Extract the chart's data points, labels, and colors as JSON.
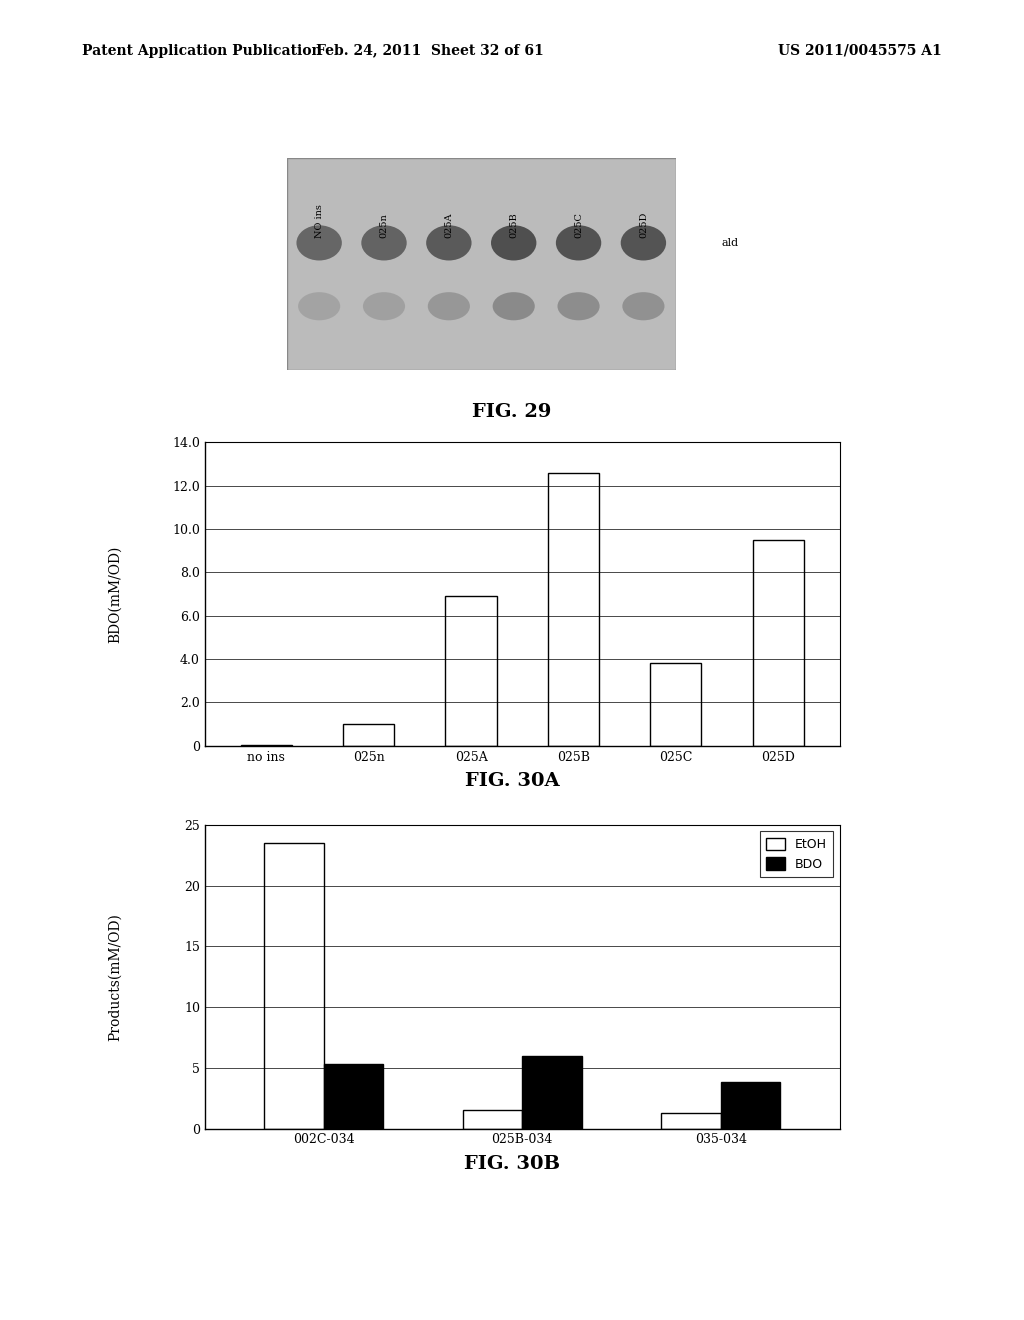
{
  "header_left": "Patent Application Publication",
  "header_mid": "Feb. 24, 2011  Sheet 32 of 61",
  "header_right": "US 2011/0045575 A1",
  "fig29_caption": "FIG. 29",
  "fig29_labels": [
    "NO ins",
    "025n",
    "025A",
    "025B",
    "025C",
    "025D"
  ],
  "fig29_arrow_label": "ald",
  "fig30a_caption": "FIG. 30A",
  "fig30a_ylabel": "BDO(mM/OD)",
  "fig30a_categories": [
    "no ins",
    "025n",
    "025A",
    "025B",
    "025C",
    "025D"
  ],
  "fig30a_values": [
    0.05,
    1.0,
    6.9,
    12.6,
    3.8,
    9.5
  ],
  "fig30a_ylim": [
    0,
    14.0
  ],
  "fig30a_yticks": [
    0,
    2.0,
    4.0,
    6.0,
    8.0,
    10.0,
    12.0,
    14.0
  ],
  "fig30b_caption": "FIG. 30B",
  "fig30b_ylabel": "Products(mM/OD)",
  "fig30b_categories": [
    "002C-034",
    "025B-034",
    "035-034"
  ],
  "fig30b_etoh": [
    23.5,
    1.5,
    1.3
  ],
  "fig30b_bdo": [
    5.3,
    6.0,
    3.8
  ],
  "fig30b_ylim": [
    0,
    25
  ],
  "fig30b_yticks": [
    0,
    5,
    10,
    15,
    20,
    25
  ],
  "legend_etoh": "EtOH",
  "legend_bdo": "BDO",
  "background_color": "#ffffff",
  "bar_color_white": "#ffffff",
  "bar_color_black": "#000000",
  "bar_edge_color": "#000000"
}
